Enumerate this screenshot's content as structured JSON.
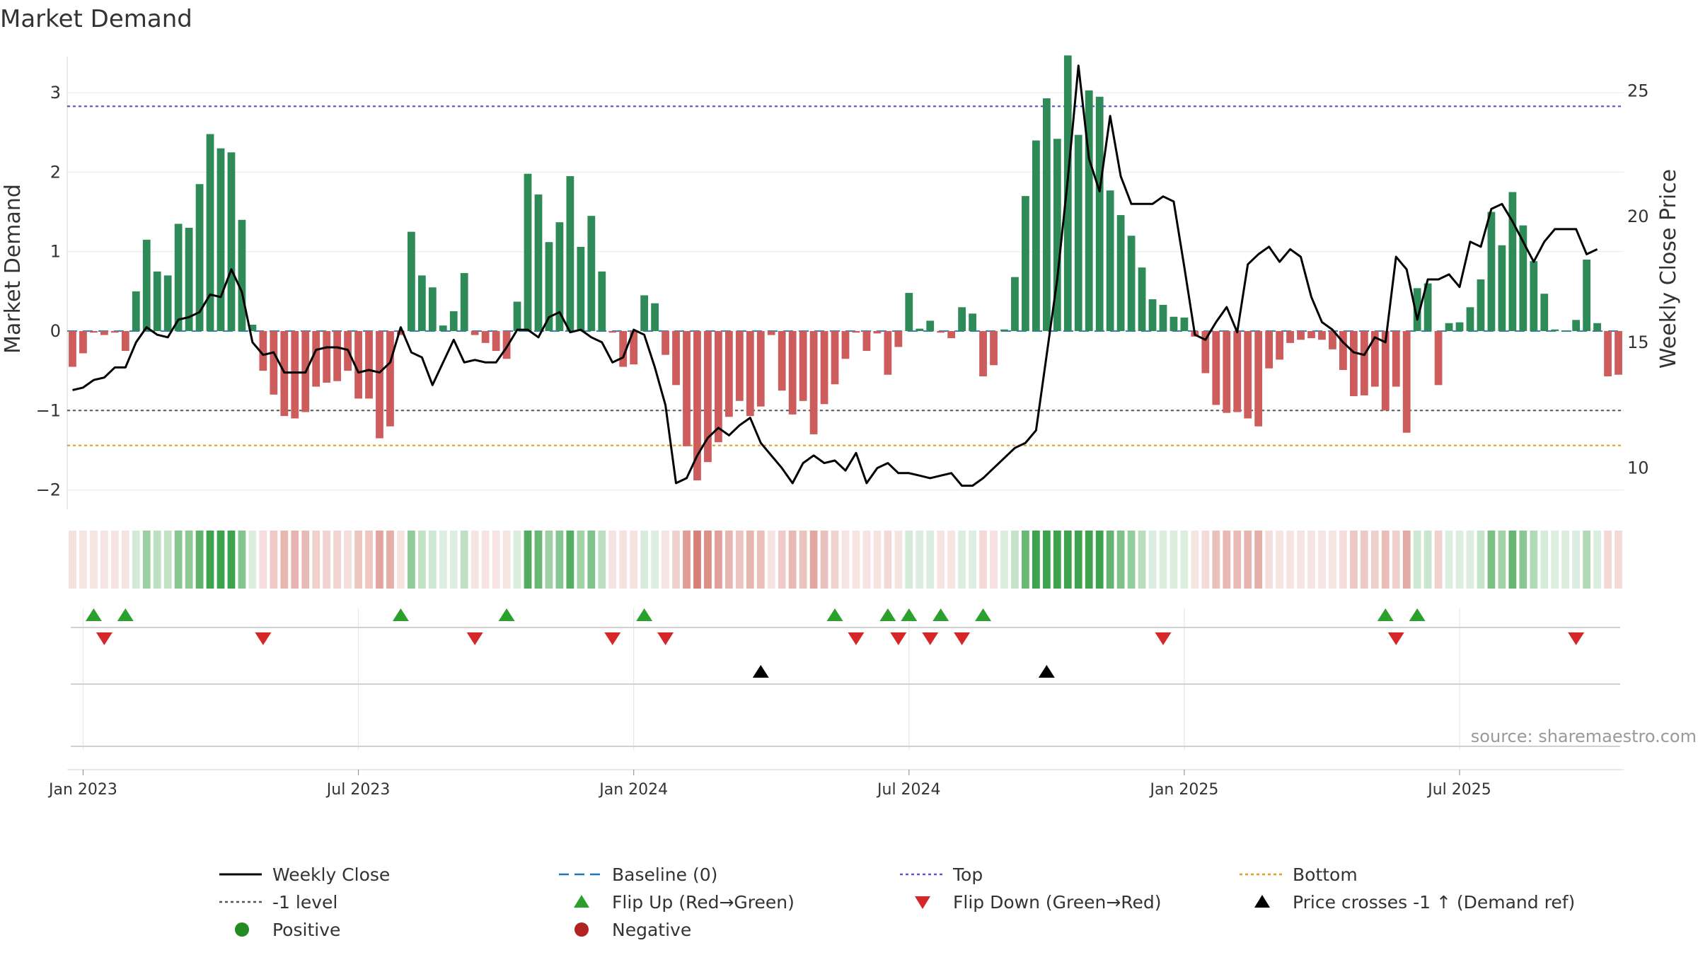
{
  "chart_data": {
    "type": "bar",
    "title": "Market Demand",
    "ylabel": "Market Demand",
    "y2label": "Weekly Close Price",
    "ylim": [
      -2.2,
      3.5
    ],
    "y2lim": [
      8.5,
      26.5
    ],
    "yticks": [
      "3",
      "2",
      "1",
      "0",
      "−1",
      "−2"
    ],
    "ytick_values": [
      3,
      2,
      1,
      0,
      -1,
      -2
    ],
    "y2ticks": [
      "25",
      "20",
      "15",
      "10"
    ],
    "y2tick_values": [
      25,
      20,
      15,
      10
    ],
    "xticks": [
      {
        "label": "Jan 2023",
        "week": 1
      },
      {
        "label": "Jul 2023",
        "week": 27
      },
      {
        "label": "Jan 2024",
        "week": 53
      },
      {
        "label": "Jul 2024",
        "week": 79
      },
      {
        "label": "Jan 2025",
        "week": 105
      },
      {
        "label": "Jul 2025",
        "week": 131
      }
    ],
    "levels": {
      "baseline": 0,
      "top": 2.83,
      "minus_one": -1,
      "bottom": -1.44
    },
    "demand": [
      -0.45,
      -0.28,
      -0.02,
      -0.05,
      -0.02,
      -0.25,
      0.5,
      1.15,
      0.75,
      0.7,
      1.35,
      1.3,
      1.85,
      2.48,
      2.3,
      2.25,
      1.4,
      0.08,
      -0.5,
      -0.8,
      -1.07,
      -1.1,
      -1.02,
      -0.7,
      -0.65,
      -0.63,
      -0.5,
      -0.85,
      -0.85,
      -1.35,
      -1.2,
      -0.05,
      1.25,
      0.7,
      0.55,
      0.07,
      0.25,
      0.73,
      -0.05,
      -0.15,
      -0.25,
      -0.35,
      0.37,
      1.98,
      1.72,
      1.12,
      1.37,
      1.95,
      1.06,
      1.45,
      0.75,
      -0.02,
      -0.45,
      -0.42,
      0.45,
      0.35,
      -0.3,
      -0.68,
      -1.45,
      -1.88,
      -1.65,
      -1.4,
      -1.08,
      -0.88,
      -1.07,
      -0.95,
      -0.05,
      -0.75,
      -1.05,
      -0.88,
      -1.3,
      -0.92,
      -0.67,
      -0.35,
      -0.02,
      -0.25,
      -0.03,
      -0.55,
      -0.2,
      0.48,
      0.03,
      0.13,
      -0.02,
      -0.09,
      0.3,
      0.22,
      -0.57,
      -0.43,
      0.02,
      0.68,
      1.7,
      2.4,
      2.93,
      2.42,
      3.47,
      2.47,
      3.03,
      2.95,
      1.77,
      1.46,
      1.2,
      0.8,
      0.4,
      0.33,
      0.18,
      0.17,
      -0.07,
      -0.53,
      -0.93,
      -1.03,
      -1.02,
      -1.1,
      -1.2,
      -0.47,
      -0.36,
      -0.15,
      -0.11,
      -0.09,
      -0.11,
      -0.23,
      -0.49,
      -0.82,
      -0.81,
      -0.7,
      -1.0,
      -0.7,
      -1.28,
      0.54,
      0.6,
      -0.68,
      0.1,
      0.11,
      0.3,
      0.65,
      1.5,
      1.08,
      1.75,
      1.33,
      0.88,
      0.47,
      0.02,
      0.0,
      0.14,
      0.9,
      0.1,
      -0.57,
      -0.55
    ],
    "close": [
      13.1,
      13.2,
      13.5,
      13.6,
      14.0,
      14.0,
      15.0,
      15.6,
      15.3,
      15.2,
      15.9,
      16.0,
      16.2,
      16.9,
      16.8,
      17.9,
      17.0,
      15.0,
      14.5,
      14.6,
      13.8,
      13.8,
      13.8,
      14.7,
      14.8,
      14.8,
      14.7,
      13.8,
      13.9,
      13.8,
      14.2,
      15.6,
      14.6,
      14.4,
      13.3,
      14.2,
      15.1,
      14.2,
      14.3,
      14.2,
      14.2,
      14.8,
      15.5,
      15.5,
      15.2,
      16.0,
      16.2,
      15.4,
      15.5,
      15.2,
      15.0,
      14.2,
      14.4,
      15.5,
      15.3,
      14.0,
      12.5,
      9.4,
      9.6,
      10.5,
      11.2,
      11.6,
      11.3,
      11.7,
      12.0,
      11.0,
      10.5,
      10.0,
      9.4,
      10.2,
      10.5,
      10.2,
      10.3,
      9.9,
      10.6,
      9.4,
      10.0,
      10.2,
      9.8,
      9.8,
      9.7,
      9.6,
      9.7,
      9.8,
      9.3,
      9.3,
      9.6,
      10.0,
      10.4,
      10.8,
      11.0,
      11.5,
      14.5,
      17.5,
      21.5,
      26.0,
      22.3,
      21.0,
      24.0,
      21.6,
      20.5,
      20.5,
      20.5,
      20.8,
      20.6,
      18.0,
      15.3,
      15.1,
      15.8,
      16.4,
      15.4,
      18.1,
      18.5,
      18.8,
      18.2,
      18.7,
      18.4,
      16.8,
      15.8,
      15.5,
      15.0,
      14.6,
      14.5,
      15.2,
      15.0,
      18.4,
      17.9,
      15.9,
      17.5,
      17.5,
      17.7,
      17.2,
      19.0,
      18.8,
      20.3,
      20.5,
      19.8,
      19.0,
      18.2,
      19.0,
      19.5,
      19.5,
      19.5,
      18.5,
      18.7
    ],
    "flip_up_weeks": [
      2,
      5,
      31,
      41,
      54,
      72,
      77,
      79,
      82,
      86,
      124,
      127
    ],
    "flip_down_weeks": [
      3,
      18,
      38,
      51,
      56,
      74,
      78,
      81,
      84,
      103,
      125,
      142
    ],
    "price_cross_weeks": [
      65,
      92
    ]
  },
  "source": "source: sharemaestro.com",
  "legend": [
    {
      "key": "weekly-close",
      "label": "Weekly Close",
      "symbol": "line",
      "color": "#000000"
    },
    {
      "key": "baseline",
      "label": "Baseline (0)",
      "symbol": "dash",
      "color": "#1f77b4"
    },
    {
      "key": "top",
      "label": "Top",
      "symbol": "dot",
      "color": "#5b5bd6"
    },
    {
      "key": "bottom",
      "label": "Bottom",
      "symbol": "dot",
      "color": "#d9a02c"
    },
    {
      "key": "minus-one",
      "label": "-1 level",
      "symbol": "dot",
      "color": "#555555"
    },
    {
      "key": "flip-up",
      "label": "Flip Up (Red→Green)",
      "symbol": "tri-up",
      "color": "#2ca02c"
    },
    {
      "key": "flip-down",
      "label": "Flip Down (Green→Red)",
      "symbol": "tri-down",
      "color": "#d62728"
    },
    {
      "key": "price-cross",
      "label": "Price crosses -1 ↑ (Demand ref)",
      "symbol": "tri-up",
      "color": "#000000"
    },
    {
      "key": "positive",
      "label": "Positive",
      "symbol": "circle",
      "color": "#228b22"
    },
    {
      "key": "negative",
      "label": "Negative",
      "symbol": "circle",
      "color": "#b22222"
    }
  ],
  "colors": {
    "positive_bar": "#2e8b57",
    "negative_bar": "#cd5c5c"
  }
}
